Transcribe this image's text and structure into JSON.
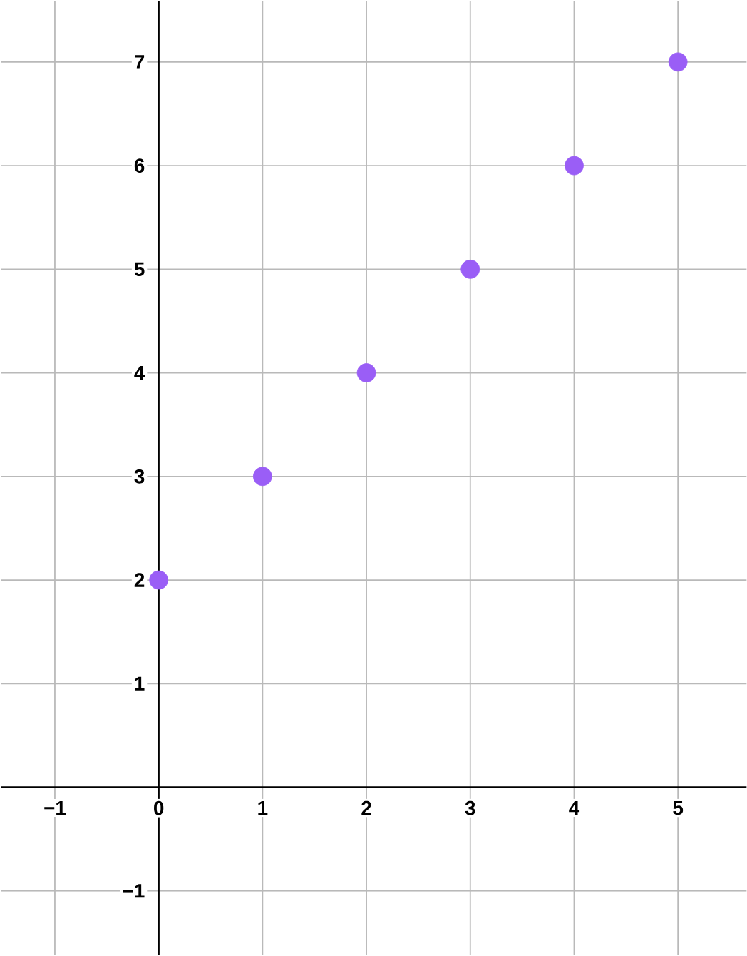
{
  "chart_data": {
    "type": "scatter",
    "x": [
      0,
      1,
      2,
      3,
      4,
      5
    ],
    "values": [
      2,
      3,
      4,
      5,
      6,
      7
    ],
    "color": "#9a5ef6",
    "grid": true,
    "xlim": [
      -1.52,
      5.66
    ],
    "ylim": [
      -1.62,
      7.59
    ],
    "xticks": [
      {
        "value": -1,
        "label": "−1"
      },
      0,
      1,
      2,
      3,
      4,
      5
    ],
    "yticks": [
      {
        "value": -1,
        "label": "−1"
      },
      1,
      2,
      3,
      4,
      5,
      6,
      7
    ]
  }
}
